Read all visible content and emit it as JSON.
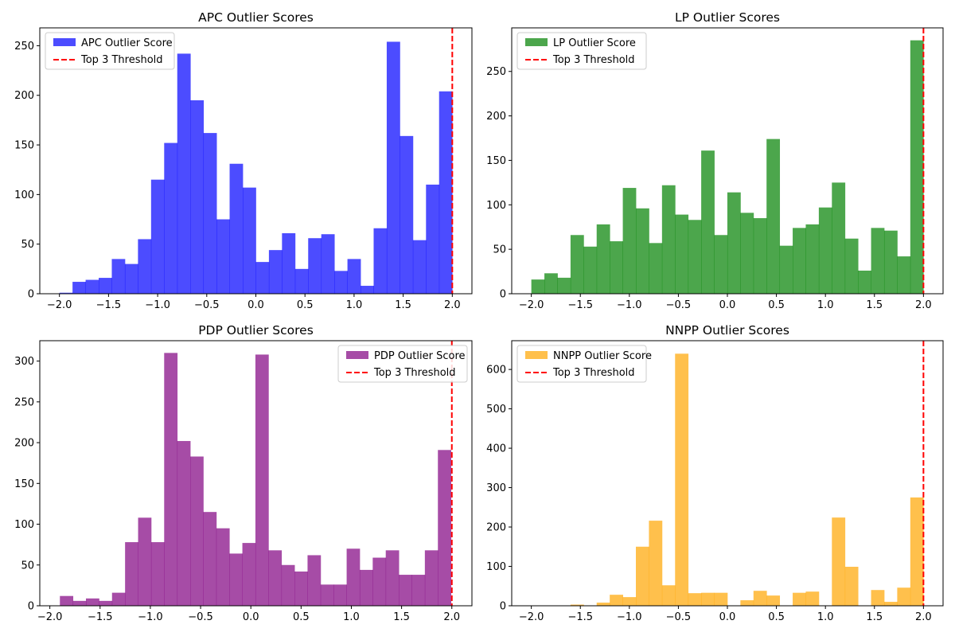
{
  "chart_data": [
    {
      "type": "histogram",
      "title": "APC Outlier Scores",
      "xlim": [
        -2.2,
        2.2
      ],
      "ylim": [
        0,
        268
      ],
      "xticks": [
        -2.0,
        -1.5,
        -1.0,
        -0.5,
        0.0,
        0.5,
        1.0,
        1.5,
        2.0
      ],
      "xtick_labels": [
        "−2.0",
        "−1.5",
        "−1.0",
        "−0.5",
        "0.0",
        "0.5",
        "1.0",
        "1.5",
        "2.0"
      ],
      "yticks": [
        0,
        50,
        100,
        150,
        200,
        250
      ],
      "ytick_labels": [
        "0",
        "50",
        "100",
        "150",
        "200",
        "250"
      ],
      "bin_start": -2.0,
      "bin_width": 0.1333,
      "values": [
        1,
        12,
        14,
        16,
        35,
        30,
        55,
        115,
        152,
        242,
        195,
        162,
        75,
        131,
        107,
        32,
        44,
        61,
        25,
        56,
        60,
        23,
        35,
        8,
        66,
        254,
        159,
        54,
        110,
        204
      ],
      "color": "#0000ff",
      "opacity": 0.7,
      "threshold": 2.0,
      "threshold_color": "#ff0000",
      "legend": {
        "position": "top-left",
        "items": [
          "APC Outlier Score",
          "Top 3 Threshold"
        ]
      }
    },
    {
      "type": "histogram",
      "title": "LP Outlier Scores",
      "xlim": [
        -2.2,
        2.2
      ],
      "ylim": [
        0,
        299
      ],
      "xticks": [
        -2.0,
        -1.5,
        -1.0,
        -0.5,
        0.0,
        0.5,
        1.0,
        1.5,
        2.0
      ],
      "xtick_labels": [
        "−2.0",
        "−1.5",
        "−1.0",
        "−0.5",
        "0.0",
        "0.5",
        "1.0",
        "1.5",
        "2.0"
      ],
      "yticks": [
        0,
        50,
        100,
        150,
        200,
        250
      ],
      "ytick_labels": [
        "0",
        "50",
        "100",
        "150",
        "200",
        "250"
      ],
      "bin_start": -2.0,
      "bin_width": 0.1333,
      "values": [
        16,
        23,
        18,
        66,
        53,
        78,
        59,
        119,
        96,
        57,
        122,
        89,
        83,
        161,
        66,
        114,
        91,
        85,
        174,
        54,
        74,
        78,
        97,
        125,
        62,
        26,
        74,
        71,
        42,
        285
      ],
      "color": "#008000",
      "opacity": 0.7,
      "threshold": 2.0,
      "threshold_color": "#ff0000",
      "legend": {
        "position": "top-left",
        "items": [
          "LP Outlier Score",
          "Top 3 Threshold"
        ]
      }
    },
    {
      "type": "histogram",
      "title": "PDP Outlier Scores",
      "xlim": [
        -2.1,
        2.2
      ],
      "ylim": [
        0,
        325
      ],
      "xticks": [
        -2.0,
        -1.5,
        -1.0,
        -0.5,
        0.0,
        0.5,
        1.0,
        1.5,
        2.0
      ],
      "xtick_labels": [
        "−2.0",
        "−1.5",
        "−1.0",
        "−0.5",
        "0.0",
        "0.5",
        "1.0",
        "1.5",
        "2.0"
      ],
      "yticks": [
        0,
        50,
        100,
        150,
        200,
        250,
        300
      ],
      "ytick_labels": [
        "0",
        "50",
        "100",
        "150",
        "200",
        "250",
        "300"
      ],
      "bin_start": -1.9,
      "bin_width": 0.1297,
      "values": [
        12,
        6,
        9,
        6,
        16,
        78,
        108,
        78,
        310,
        202,
        183,
        115,
        95,
        64,
        77,
        308,
        68,
        50,
        42,
        62,
        26,
        26,
        70,
        44,
        59,
        68,
        38,
        38,
        68,
        191
      ],
      "color": "#800080",
      "opacity": 0.7,
      "threshold": 2.0,
      "threshold_color": "#ff0000",
      "legend": {
        "position": "top-right",
        "items": [
          "PDP Outlier Score",
          "Top 3 Threshold"
        ]
      }
    },
    {
      "type": "histogram",
      "title": "NNPP Outlier Scores",
      "xlim": [
        -2.2,
        2.2
      ],
      "ylim": [
        0,
        673
      ],
      "xticks": [
        -2.0,
        -1.5,
        -1.0,
        -0.5,
        0.0,
        0.5,
        1.0,
        1.5,
        2.0
      ],
      "xtick_labels": [
        "−2.0",
        "−1.5",
        "−1.0",
        "−0.5",
        "0.0",
        "0.5",
        "1.0",
        "1.5",
        "2.0"
      ],
      "yticks": [
        0,
        100,
        200,
        300,
        400,
        500,
        600
      ],
      "ytick_labels": [
        "0",
        "100",
        "200",
        "300",
        "400",
        "500",
        "600"
      ],
      "bin_start": -2.0,
      "bin_width": 0.1333,
      "values": [
        1,
        0,
        0,
        3,
        0,
        8,
        28,
        22,
        150,
        216,
        52,
        640,
        32,
        33,
        33,
        0,
        14,
        38,
        26,
        0,
        33,
        36,
        0,
        224,
        99,
        0,
        40,
        10,
        46,
        275
      ],
      "color": "#ffa500",
      "opacity": 0.7,
      "threshold": 2.0,
      "threshold_color": "#ff0000",
      "legend": {
        "position": "top-left",
        "items": [
          "NNPP Outlier Score",
          "Top 3 Threshold"
        ]
      }
    }
  ]
}
